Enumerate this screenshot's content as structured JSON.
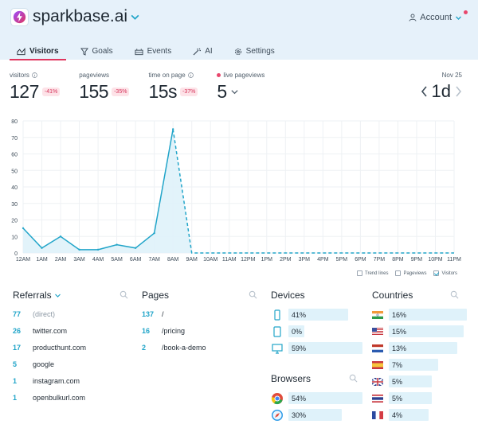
{
  "header": {
    "site_name": "sparkbase.ai",
    "account_label": "Account",
    "notification_color": "#e8466c"
  },
  "tabs": [
    {
      "label": "Visitors",
      "icon": "visitors-icon",
      "active": true
    },
    {
      "label": "Goals",
      "icon": "funnel-icon"
    },
    {
      "label": "Events",
      "icon": "events-icon"
    },
    {
      "label": "AI",
      "icon": "ai-wand-icon"
    },
    {
      "label": "Settings",
      "icon": "gear-icon"
    }
  ],
  "stats": {
    "visitors": {
      "label": "visitors",
      "value": "127",
      "change": "-41%"
    },
    "pageviews": {
      "label": "pageviews",
      "value": "155",
      "change": "-35%"
    },
    "time_on_page": {
      "label": "time on page",
      "value": "15s",
      "change": "-37%"
    },
    "live_pageviews": {
      "label": "live pageviews",
      "value": "5"
    }
  },
  "date_nav": {
    "date": "Nov 25",
    "range": "1d"
  },
  "chart_data": {
    "type": "area",
    "title": "",
    "xlabel": "",
    "ylabel": "",
    "ylim": [
      0,
      80
    ],
    "yticks": [
      0,
      10,
      20,
      30,
      40,
      50,
      60,
      70,
      80
    ],
    "categories": [
      "12AM",
      "1AM",
      "2AM",
      "3AM",
      "4AM",
      "5AM",
      "6AM",
      "7AM",
      "8AM",
      "9AM",
      "10AM",
      "11AM",
      "12PM",
      "1PM",
      "2PM",
      "3PM",
      "4PM",
      "5PM",
      "6PM",
      "7PM",
      "8PM",
      "9PM",
      "10PM",
      "11PM"
    ],
    "series": [
      {
        "name": "Visitors",
        "values": [
          15,
          3,
          10,
          2,
          2,
          5,
          3,
          12,
          75,
          0,
          0,
          0,
          0,
          0,
          0,
          0,
          0,
          0,
          0,
          0,
          0,
          0,
          0,
          0
        ],
        "solid_until_index": 8
      },
      {
        "name": "Pageviews",
        "hidden": true
      },
      {
        "name": "Trend lines",
        "hidden": true
      }
    ],
    "grid": true,
    "legend": "bottom-right",
    "line_color": "#22a5c9",
    "fill_color": "#dff2fa"
  },
  "legend": {
    "trend_lines": "Trend lines",
    "pageviews": "Pageviews",
    "visitors": "Visitors"
  },
  "referrals": {
    "title": "Referrals",
    "items": [
      {
        "count": "77",
        "label": "(direct)",
        "muted": true
      },
      {
        "count": "26",
        "label": "twitter.com"
      },
      {
        "count": "17",
        "label": "producthunt.com"
      },
      {
        "count": "5",
        "label": "google"
      },
      {
        "count": "1",
        "label": "instagram.com"
      },
      {
        "count": "1",
        "label": "openbulkurl.com"
      }
    ]
  },
  "pages": {
    "title": "Pages",
    "items": [
      {
        "count": "137",
        "label": "/"
      },
      {
        "count": "16",
        "label": "/pricing"
      },
      {
        "count": "2",
        "label": "/book-a-demo"
      }
    ]
  },
  "devices": {
    "title": "Devices",
    "items": [
      {
        "icon": "mobile-icon",
        "value": "41%",
        "pct": 0.41
      },
      {
        "icon": "tablet-icon",
        "value": "0%",
        "pct": 0.0
      },
      {
        "icon": "desktop-icon",
        "value": "59%",
        "pct": 0.59
      }
    ]
  },
  "browsers": {
    "title": "Browsers",
    "items": [
      {
        "icon": "chrome-icon",
        "value": "54%",
        "pct": 0.54
      },
      {
        "icon": "safari-icon",
        "value": "30%",
        "pct": 0.3
      }
    ]
  },
  "countries": {
    "title": "Countries",
    "items": [
      {
        "icon": "india-flag-icon",
        "value": "16%",
        "pct": 0.16
      },
      {
        "icon": "usa-flag-icon",
        "value": "15%",
        "pct": 0.15
      },
      {
        "icon": "netherlands-flag-icon",
        "value": "13%",
        "pct": 0.13
      },
      {
        "icon": "spain-flag-icon",
        "value": "7%",
        "pct": 0.07
      },
      {
        "icon": "uk-flag-icon",
        "value": "5%",
        "pct": 0.05
      },
      {
        "icon": "thailand-flag-icon",
        "value": "5%",
        "pct": 0.05
      },
      {
        "icon": "france-flag-icon",
        "value": "4%",
        "pct": 0.04
      }
    ]
  }
}
